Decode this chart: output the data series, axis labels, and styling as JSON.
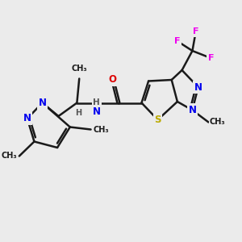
{
  "bg_color": "#ebebeb",
  "bond_color": "#1a1a1a",
  "bond_width": 1.8,
  "atom_colors": {
    "N": "#0000ee",
    "O": "#dd0000",
    "S": "#bbaa00",
    "F": "#ee00ee",
    "C": "#1a1a1a",
    "H": "#555555"
  },
  "fig_w": 3.0,
  "fig_h": 3.0,
  "dpi": 100,
  "xlim": [
    0,
    10
  ],
  "ylim": [
    0,
    10
  ]
}
